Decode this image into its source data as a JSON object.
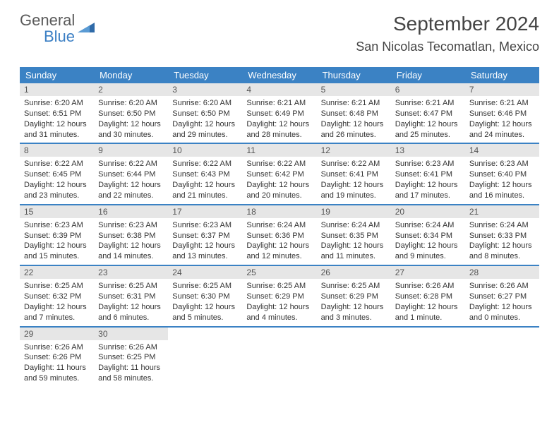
{
  "brand": {
    "general": "General",
    "blue": "Blue"
  },
  "header": {
    "month_title": "September 2024",
    "location": "San Nicolas Tecomatlan, Mexico"
  },
  "colors": {
    "header_bg": "#3b82c4",
    "header_text": "#ffffff",
    "daynum_bg": "#e6e6e6",
    "body_text": "#333333",
    "row_divider": "#3b82c4"
  },
  "weekdays": [
    "Sunday",
    "Monday",
    "Tuesday",
    "Wednesday",
    "Thursday",
    "Friday",
    "Saturday"
  ],
  "weeks": [
    [
      {
        "n": "1",
        "sr": "Sunrise: 6:20 AM",
        "ss": "Sunset: 6:51 PM",
        "dl": "Daylight: 12 hours and 31 minutes."
      },
      {
        "n": "2",
        "sr": "Sunrise: 6:20 AM",
        "ss": "Sunset: 6:50 PM",
        "dl": "Daylight: 12 hours and 30 minutes."
      },
      {
        "n": "3",
        "sr": "Sunrise: 6:20 AM",
        "ss": "Sunset: 6:50 PM",
        "dl": "Daylight: 12 hours and 29 minutes."
      },
      {
        "n": "4",
        "sr": "Sunrise: 6:21 AM",
        "ss": "Sunset: 6:49 PM",
        "dl": "Daylight: 12 hours and 28 minutes."
      },
      {
        "n": "5",
        "sr": "Sunrise: 6:21 AM",
        "ss": "Sunset: 6:48 PM",
        "dl": "Daylight: 12 hours and 26 minutes."
      },
      {
        "n": "6",
        "sr": "Sunrise: 6:21 AM",
        "ss": "Sunset: 6:47 PM",
        "dl": "Daylight: 12 hours and 25 minutes."
      },
      {
        "n": "7",
        "sr": "Sunrise: 6:21 AM",
        "ss": "Sunset: 6:46 PM",
        "dl": "Daylight: 12 hours and 24 minutes."
      }
    ],
    [
      {
        "n": "8",
        "sr": "Sunrise: 6:22 AM",
        "ss": "Sunset: 6:45 PM",
        "dl": "Daylight: 12 hours and 23 minutes."
      },
      {
        "n": "9",
        "sr": "Sunrise: 6:22 AM",
        "ss": "Sunset: 6:44 PM",
        "dl": "Daylight: 12 hours and 22 minutes."
      },
      {
        "n": "10",
        "sr": "Sunrise: 6:22 AM",
        "ss": "Sunset: 6:43 PM",
        "dl": "Daylight: 12 hours and 21 minutes."
      },
      {
        "n": "11",
        "sr": "Sunrise: 6:22 AM",
        "ss": "Sunset: 6:42 PM",
        "dl": "Daylight: 12 hours and 20 minutes."
      },
      {
        "n": "12",
        "sr": "Sunrise: 6:22 AM",
        "ss": "Sunset: 6:41 PM",
        "dl": "Daylight: 12 hours and 19 minutes."
      },
      {
        "n": "13",
        "sr": "Sunrise: 6:23 AM",
        "ss": "Sunset: 6:41 PM",
        "dl": "Daylight: 12 hours and 17 minutes."
      },
      {
        "n": "14",
        "sr": "Sunrise: 6:23 AM",
        "ss": "Sunset: 6:40 PM",
        "dl": "Daylight: 12 hours and 16 minutes."
      }
    ],
    [
      {
        "n": "15",
        "sr": "Sunrise: 6:23 AM",
        "ss": "Sunset: 6:39 PM",
        "dl": "Daylight: 12 hours and 15 minutes."
      },
      {
        "n": "16",
        "sr": "Sunrise: 6:23 AM",
        "ss": "Sunset: 6:38 PM",
        "dl": "Daylight: 12 hours and 14 minutes."
      },
      {
        "n": "17",
        "sr": "Sunrise: 6:23 AM",
        "ss": "Sunset: 6:37 PM",
        "dl": "Daylight: 12 hours and 13 minutes."
      },
      {
        "n": "18",
        "sr": "Sunrise: 6:24 AM",
        "ss": "Sunset: 6:36 PM",
        "dl": "Daylight: 12 hours and 12 minutes."
      },
      {
        "n": "19",
        "sr": "Sunrise: 6:24 AM",
        "ss": "Sunset: 6:35 PM",
        "dl": "Daylight: 12 hours and 11 minutes."
      },
      {
        "n": "20",
        "sr": "Sunrise: 6:24 AM",
        "ss": "Sunset: 6:34 PM",
        "dl": "Daylight: 12 hours and 9 minutes."
      },
      {
        "n": "21",
        "sr": "Sunrise: 6:24 AM",
        "ss": "Sunset: 6:33 PM",
        "dl": "Daylight: 12 hours and 8 minutes."
      }
    ],
    [
      {
        "n": "22",
        "sr": "Sunrise: 6:25 AM",
        "ss": "Sunset: 6:32 PM",
        "dl": "Daylight: 12 hours and 7 minutes."
      },
      {
        "n": "23",
        "sr": "Sunrise: 6:25 AM",
        "ss": "Sunset: 6:31 PM",
        "dl": "Daylight: 12 hours and 6 minutes."
      },
      {
        "n": "24",
        "sr": "Sunrise: 6:25 AM",
        "ss": "Sunset: 6:30 PM",
        "dl": "Daylight: 12 hours and 5 minutes."
      },
      {
        "n": "25",
        "sr": "Sunrise: 6:25 AM",
        "ss": "Sunset: 6:29 PM",
        "dl": "Daylight: 12 hours and 4 minutes."
      },
      {
        "n": "26",
        "sr": "Sunrise: 6:25 AM",
        "ss": "Sunset: 6:29 PM",
        "dl": "Daylight: 12 hours and 3 minutes."
      },
      {
        "n": "27",
        "sr": "Sunrise: 6:26 AM",
        "ss": "Sunset: 6:28 PM",
        "dl": "Daylight: 12 hours and 1 minute."
      },
      {
        "n": "28",
        "sr": "Sunrise: 6:26 AM",
        "ss": "Sunset: 6:27 PM",
        "dl": "Daylight: 12 hours and 0 minutes."
      }
    ],
    [
      {
        "n": "29",
        "sr": "Sunrise: 6:26 AM",
        "ss": "Sunset: 6:26 PM",
        "dl": "Daylight: 11 hours and 59 minutes."
      },
      {
        "n": "30",
        "sr": "Sunrise: 6:26 AM",
        "ss": "Sunset: 6:25 PM",
        "dl": "Daylight: 11 hours and 58 minutes."
      },
      null,
      null,
      null,
      null,
      null
    ]
  ]
}
